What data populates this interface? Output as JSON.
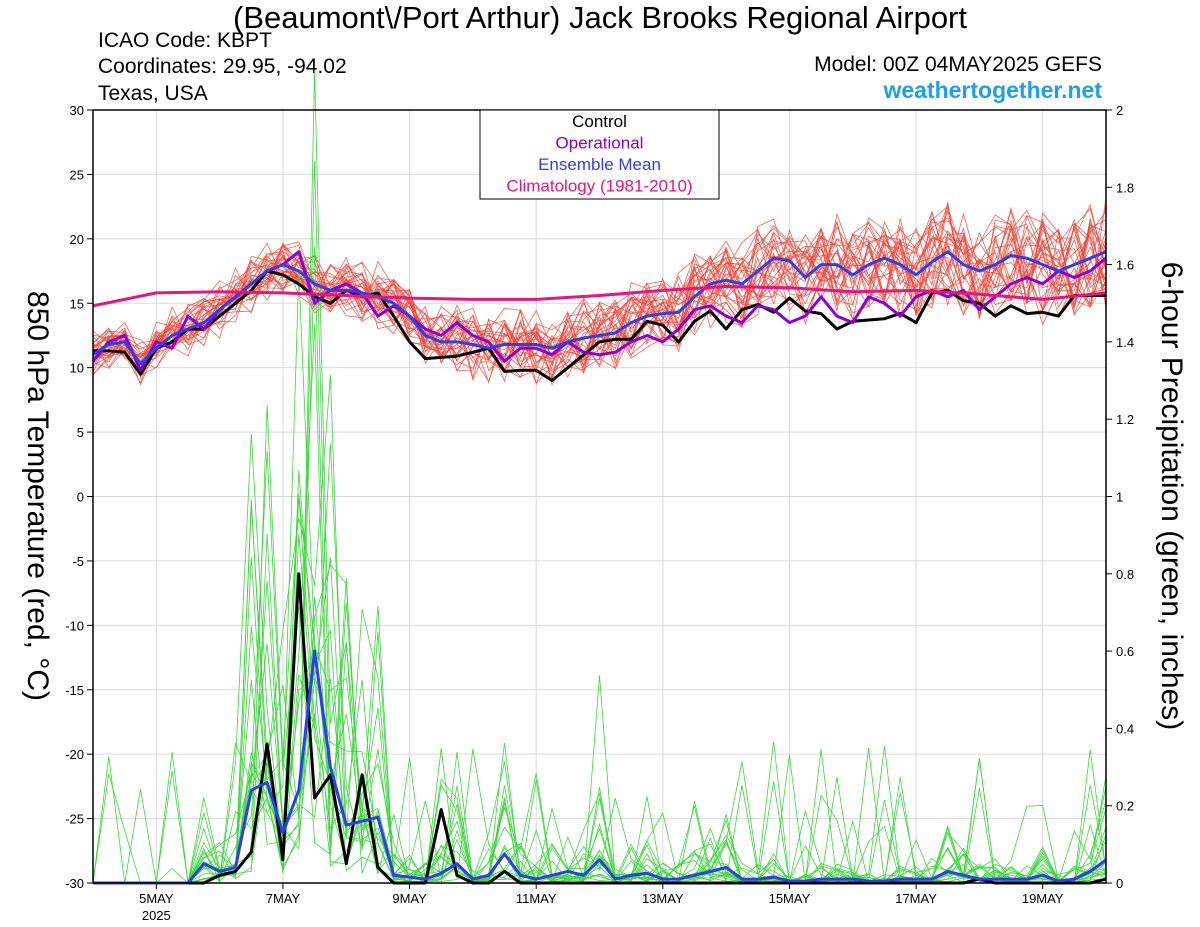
{
  "header": {
    "title": "(Beaumont\\/Port Arthur) Jack Brooks Regional Airport",
    "icao": "ICAO Code: KBPT",
    "coordinates": "Coordinates: 29.95, -94.02",
    "location": "Texas, USA",
    "model": "Model: 00Z 04MAY2025 GEFS",
    "brand": "weathertogether.net"
  },
  "colors": {
    "control": "#000000",
    "operational": "#8a00d4",
    "ensemble_mean": "#2f3fe8",
    "climatology": "#e8147f",
    "members_temp": "#f0463a",
    "members_precip": "#3ed63e",
    "brand": "#1ea0e8"
  },
  "chart_data": {
    "type": "line",
    "ylabel": "850 hPa Temperature (red, °C)",
    "ylabel2": "6-hour Precipitation (green, inches)",
    "ylim": [
      -30,
      30
    ],
    "y2lim": [
      0,
      2
    ],
    "yticks": [
      "30",
      "25",
      "20",
      "15",
      "10",
      "5",
      "0",
      "-5",
      "-10",
      "-15",
      "-20",
      "-25",
      "-30"
    ],
    "y2ticks": [
      "2",
      "1.8",
      "1.6",
      "1.4",
      "1.2",
      "1",
      "0.8",
      "0.6",
      "0.4",
      "0.2",
      "0"
    ],
    "xlim": [
      0,
      96
    ],
    "x_unit": "hours after 00Z 04 May 2025 divided by 4",
    "xticks": [
      {
        "label": "5MAY",
        "sublabel": "2025",
        "x": 4
      },
      {
        "label": "7MAY",
        "sublabel": "",
        "x": 12
      },
      {
        "label": "9MAY",
        "sublabel": "",
        "x": 20
      },
      {
        "label": "11MAY",
        "sublabel": "",
        "x": 28
      },
      {
        "label": "13MAY",
        "sublabel": "",
        "x": 36
      },
      {
        "label": "15MAY",
        "sublabel": "",
        "x": 44
      },
      {
        "label": "17MAY",
        "sublabel": "",
        "x": 52
      },
      {
        "label": "19MAY",
        "sublabel": "",
        "x": 60
      }
    ],
    "legend": {
      "position": "top-center",
      "entries": [
        "Control",
        "Operational",
        "Ensemble Mean",
        "Climatology (1981-2010)"
      ]
    },
    "series": [
      {
        "name": "Control",
        "axis": "left",
        "x": [
          0,
          1,
          2,
          3,
          4,
          5,
          6,
          7,
          8,
          9,
          10,
          11,
          12,
          13,
          14,
          15,
          16,
          17,
          18,
          19,
          20,
          21,
          22,
          23,
          24,
          25,
          26,
          27,
          28,
          29,
          30,
          31,
          32,
          33,
          34,
          35,
          36,
          37,
          38,
          39,
          40,
          41,
          42,
          43,
          44,
          45,
          46,
          47,
          48,
          49,
          50,
          51,
          52,
          53,
          54,
          55,
          56,
          57,
          58,
          59,
          60,
          61,
          62,
          63,
          64
        ],
        "values": [
          11.3,
          11.3,
          11.2,
          9.5,
          11.5,
          12.0,
          13.0,
          13.0,
          14.0,
          15.0,
          16.0,
          17.5,
          17.2,
          16.5,
          15.5,
          15.0,
          16.0,
          15.5,
          15.8,
          14.0,
          12.0,
          10.7,
          10.8,
          10.9,
          11.2,
          11.5,
          9.7,
          9.8,
          9.8,
          9.0,
          10.0,
          11.0,
          12.0,
          12.2,
          12.2,
          13.6,
          13.3,
          12.0,
          13.6,
          14.4,
          13.0,
          14.5,
          14.9,
          14.3,
          15.4,
          14.4,
          14.2,
          13.0,
          13.6,
          13.7,
          13.8,
          14.2,
          13.5,
          15.8,
          16.0,
          15.2,
          15.0,
          14.0,
          14.8,
          14.2,
          14.3,
          14.0,
          15.6,
          15.6,
          15.6
        ]
      },
      {
        "name": "Operational",
        "axis": "left",
        "x": [
          0,
          1,
          2,
          3,
          4,
          5,
          6,
          7,
          8,
          9,
          10,
          11,
          12,
          13,
          14,
          15,
          16,
          17,
          18,
          19,
          20,
          21,
          22,
          23,
          24,
          25,
          26,
          27,
          28,
          29,
          30,
          31,
          32,
          33,
          34,
          35,
          36,
          37,
          38,
          39,
          40,
          41,
          42,
          43,
          44,
          45,
          46,
          47,
          48,
          49,
          50,
          51,
          52,
          53,
          54,
          55,
          56,
          57,
          58,
          59,
          60,
          61,
          62,
          63,
          64
        ],
        "values": [
          10.5,
          12.0,
          12.5,
          9.8,
          12.0,
          11.5,
          14.0,
          13.0,
          14.5,
          15.5,
          16.5,
          17.5,
          18.0,
          19.0,
          15.0,
          16.0,
          16.5,
          15.8,
          14.0,
          14.8,
          14.0,
          13.0,
          12.5,
          13.5,
          12.5,
          12.0,
          10.5,
          11.5,
          11.5,
          11.0,
          12.0,
          11.2,
          11.0,
          11.2,
          12.0,
          12.5,
          12.0,
          13.0,
          14.5,
          14.8,
          14.0,
          13.5,
          14.8,
          14.5,
          13.5,
          14.0,
          15.5,
          14.0,
          13.5,
          15.5,
          15.0,
          14.0,
          15.5,
          16.0,
          15.5,
          16.0,
          14.5,
          15.5,
          16.5,
          17.0,
          16.5,
          17.5,
          17.0,
          17.5,
          18.5
        ]
      },
      {
        "name": "Ensemble Mean",
        "axis": "left",
        "x": [
          0,
          1,
          2,
          3,
          4,
          5,
          6,
          7,
          8,
          9,
          10,
          11,
          12,
          13,
          14,
          15,
          16,
          17,
          18,
          19,
          20,
          21,
          22,
          23,
          24,
          25,
          26,
          27,
          28,
          29,
          30,
          31,
          32,
          33,
          34,
          35,
          36,
          37,
          38,
          39,
          40,
          41,
          42,
          43,
          44,
          45,
          46,
          47,
          48,
          49,
          50,
          51,
          52,
          53,
          54,
          55,
          56,
          57,
          58,
          59,
          60,
          61,
          62,
          63,
          64
        ],
        "values": [
          11.0,
          11.8,
          12.0,
          10.3,
          11.5,
          12.5,
          13.0,
          13.5,
          14.5,
          15.5,
          16.5,
          17.5,
          18.0,
          17.5,
          16.5,
          16.0,
          16.0,
          15.8,
          15.5,
          15.0,
          14.0,
          12.5,
          12.0,
          12.0,
          11.8,
          11.5,
          11.8,
          11.8,
          11.8,
          11.5,
          12.0,
          12.3,
          12.5,
          12.7,
          13.5,
          14.0,
          14.2,
          14.3,
          15.5,
          16.5,
          16.8,
          16.5,
          17.5,
          18.5,
          18.3,
          17.0,
          18.0,
          18.0,
          17.2,
          18.0,
          18.5,
          18.0,
          17.2,
          18.2,
          19.0,
          18.0,
          17.5,
          18.0,
          18.7,
          18.5,
          18.0,
          17.5,
          18.0,
          18.5,
          19.0
        ]
      },
      {
        "name": "Climatology (1981-2010)",
        "axis": "left",
        "x": [
          0,
          4,
          8,
          12,
          16,
          20,
          24,
          28,
          32,
          36,
          40,
          44,
          48,
          52,
          56,
          60,
          64
        ],
        "values": [
          14.8,
          15.8,
          15.9,
          15.8,
          15.6,
          15.4,
          15.3,
          15.3,
          15.6,
          16.0,
          16.3,
          16.2,
          15.9,
          16.0,
          15.7,
          15.3,
          15.8
        ]
      },
      {
        "name": "Control",
        "axis": "right",
        "x": [
          0,
          1,
          2,
          3,
          4,
          5,
          6,
          7,
          8,
          9,
          10,
          11,
          12,
          13,
          14,
          15,
          16,
          17,
          18,
          19,
          20,
          21,
          22,
          23,
          24,
          25,
          26,
          27,
          28,
          29,
          30,
          31,
          32,
          33,
          34,
          35,
          36,
          37,
          38,
          39,
          40,
          41,
          42,
          43,
          44,
          45,
          46,
          47,
          48,
          49,
          50,
          51,
          52,
          53,
          54,
          55,
          56,
          57,
          58,
          59,
          60,
          61,
          62,
          63,
          64
        ],
        "values": [
          0,
          0,
          0,
          0,
          0,
          0,
          0,
          0,
          0.02,
          0.03,
          0.08,
          0.36,
          0.06,
          0.8,
          0.22,
          0.28,
          0.05,
          0.28,
          0.04,
          0,
          0,
          0,
          0.19,
          0.02,
          0,
          0,
          0.03,
          0,
          0,
          0,
          0,
          0,
          0,
          0,
          0,
          0,
          0,
          0,
          0,
          0,
          0,
          0,
          0,
          0,
          0,
          0,
          0,
          0,
          0,
          0,
          0,
          0,
          0,
          0,
          0,
          0,
          0.01,
          0,
          0,
          0,
          0,
          0,
          0,
          0,
          0.01
        ]
      },
      {
        "name": "Ensemble Mean",
        "axis": "right",
        "x": [
          0,
          1,
          2,
          3,
          4,
          5,
          6,
          7,
          8,
          9,
          10,
          11,
          12,
          13,
          14,
          15,
          16,
          17,
          18,
          19,
          20,
          21,
          22,
          23,
          24,
          25,
          26,
          27,
          28,
          29,
          30,
          31,
          32,
          33,
          34,
          35,
          36,
          37,
          38,
          39,
          40,
          41,
          42,
          43,
          44,
          45,
          46,
          47,
          48,
          49,
          50,
          51,
          52,
          53,
          54,
          55,
          56,
          57,
          58,
          59,
          60,
          61,
          62,
          63,
          64
        ],
        "values": [
          0,
          0,
          0,
          0,
          0,
          0,
          0,
          0.05,
          0.03,
          0.04,
          0.24,
          0.26,
          0.13,
          0.24,
          0.6,
          0.3,
          0.15,
          0.16,
          0.17,
          0.02,
          0.015,
          0.01,
          0.025,
          0.05,
          0.01,
          0.02,
          0.075,
          0.02,
          0.01,
          0.02,
          0.03,
          0.02,
          0.06,
          0.01,
          0.02,
          0.025,
          0.01,
          0.01,
          0.02,
          0.03,
          0.04,
          0.01,
          0.01,
          0.015,
          0.005,
          0.005,
          0.01,
          0.01,
          0.01,
          0.005,
          0.005,
          0.01,
          0.01,
          0.01,
          0.03,
          0.02,
          0.01,
          0.01,
          0.01,
          0.01,
          0.02,
          0.005,
          0.01,
          0.03,
          0.06
        ]
      }
    ],
    "member_series": {
      "count": 30,
      "temperature_axis": "left",
      "precipitation_axis": "right"
    }
  }
}
